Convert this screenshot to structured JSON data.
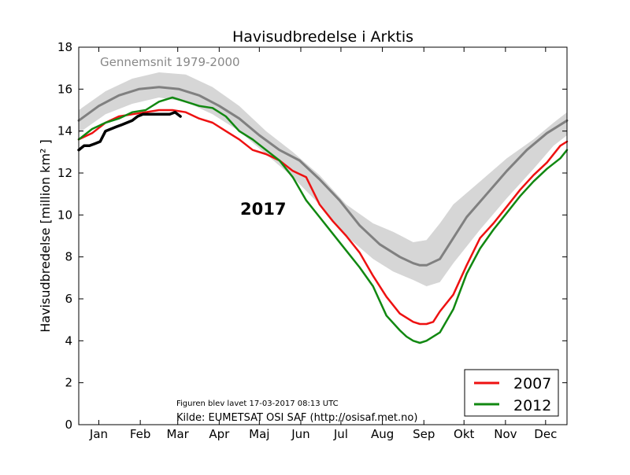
{
  "chart_data": {
    "type": "line",
    "title": "Havisudbredelse i Arktis",
    "xlabel": "",
    "ylabel": "Havisudbredelse [million km² ]",
    "xlim": [
      0,
      365
    ],
    "ylim": [
      0,
      18
    ],
    "yticks": [
      0,
      2,
      4,
      6,
      8,
      10,
      12,
      14,
      16,
      18
    ],
    "month_labels": [
      "Jan",
      "Feb",
      "Mar",
      "Apr",
      "Maj",
      "Jun",
      "Jul",
      "Aug",
      "Sep",
      "Okt",
      "Nov",
      "Dec"
    ],
    "month_positions": [
      15,
      46,
      74,
      105,
      135,
      166,
      196,
      227,
      258,
      288,
      319,
      349
    ],
    "grid": false,
    "legend_position": "lower-right",
    "band": {
      "x": [
        0,
        20,
        40,
        60,
        80,
        100,
        120,
        140,
        160,
        180,
        200,
        220,
        235,
        250,
        260,
        270,
        280,
        300,
        320,
        340,
        355,
        365
      ],
      "lower": [
        13.9,
        14.8,
        15.3,
        15.6,
        15.4,
        14.8,
        14.0,
        12.9,
        11.8,
        10.5,
        9.0,
        7.9,
        7.3,
        6.9,
        6.6,
        6.8,
        7.7,
        9.3,
        10.8,
        12.2,
        13.3,
        13.8
      ],
      "upper": [
        15.0,
        15.9,
        16.5,
        16.8,
        16.7,
        16.1,
        15.2,
        14.0,
        13.0,
        11.9,
        10.5,
        9.6,
        9.2,
        8.7,
        8.8,
        9.6,
        10.5,
        11.6,
        12.7,
        13.6,
        14.4,
        14.9
      ]
    },
    "annotations": {
      "band_label": "Gennemsnit 1979-2000",
      "year_label": "2017",
      "created": "Figuren blev lavet 17-03-2017 08:13 UTC",
      "source": "Kilde: EUMETSAT OSI SAF (http://osisaf.met.no)"
    },
    "series": [
      {
        "name": "",
        "color": "#808080",
        "x": [
          0,
          15,
          30,
          45,
          60,
          75,
          90,
          105,
          120,
          135,
          150,
          165,
          180,
          195,
          210,
          225,
          240,
          250,
          255,
          260,
          270,
          280,
          290,
          305,
          320,
          335,
          350,
          365
        ],
        "y": [
          14.5,
          15.2,
          15.7,
          16.0,
          16.1,
          16.0,
          15.7,
          15.2,
          14.6,
          13.8,
          13.1,
          12.6,
          11.7,
          10.7,
          9.5,
          8.6,
          8.0,
          7.7,
          7.6,
          7.6,
          7.9,
          8.9,
          9.9,
          11.0,
          12.1,
          13.1,
          13.9,
          14.5
        ]
      },
      {
        "name": "2007",
        "color": "#ee1111",
        "x": [
          0,
          10,
          20,
          30,
          40,
          50,
          60,
          70,
          80,
          90,
          100,
          110,
          120,
          130,
          140,
          150,
          160,
          170,
          180,
          190,
          200,
          210,
          220,
          230,
          240,
          250,
          255,
          260,
          265,
          270,
          280,
          290,
          300,
          310,
          320,
          330,
          340,
          350,
          360,
          365
        ],
        "y": [
          13.6,
          13.9,
          14.4,
          14.7,
          14.8,
          14.9,
          15.0,
          15.0,
          14.9,
          14.6,
          14.4,
          14.0,
          13.6,
          13.1,
          12.9,
          12.6,
          12.1,
          11.8,
          10.5,
          9.7,
          9.0,
          8.2,
          7.1,
          6.1,
          5.3,
          4.9,
          4.8,
          4.8,
          4.9,
          5.4,
          6.2,
          7.6,
          8.9,
          9.6,
          10.4,
          11.2,
          11.9,
          12.5,
          13.3,
          13.5
        ]
      },
      {
        "name": "2012",
        "color": "#118811",
        "x": [
          0,
          10,
          20,
          30,
          40,
          50,
          60,
          70,
          80,
          90,
          100,
          110,
          120,
          130,
          140,
          150,
          160,
          170,
          180,
          190,
          200,
          210,
          220,
          230,
          240,
          245,
          250,
          255,
          260,
          270,
          280,
          290,
          300,
          310,
          320,
          330,
          340,
          350,
          360,
          365
        ],
        "y": [
          13.6,
          14.1,
          14.4,
          14.6,
          14.9,
          15.0,
          15.4,
          15.6,
          15.4,
          15.2,
          15.1,
          14.7,
          14.0,
          13.6,
          13.1,
          12.6,
          11.8,
          10.7,
          9.9,
          9.1,
          8.3,
          7.5,
          6.6,
          5.2,
          4.5,
          4.2,
          4.0,
          3.9,
          4.0,
          4.4,
          5.5,
          7.2,
          8.4,
          9.3,
          10.1,
          10.9,
          11.6,
          12.2,
          12.7,
          13.1
        ]
      },
      {
        "name": "",
        "color": "#000000",
        "x": [
          0,
          4,
          8,
          12,
          16,
          20,
          24,
          28,
          32,
          36,
          40,
          44,
          48,
          52,
          56,
          60,
          64,
          68,
          72,
          76
        ],
        "y": [
          13.1,
          13.3,
          13.3,
          13.4,
          13.5,
          14.0,
          14.1,
          14.2,
          14.3,
          14.4,
          14.5,
          14.7,
          14.8,
          14.8,
          14.8,
          14.8,
          14.8,
          14.8,
          14.9,
          14.7
        ]
      }
    ]
  }
}
